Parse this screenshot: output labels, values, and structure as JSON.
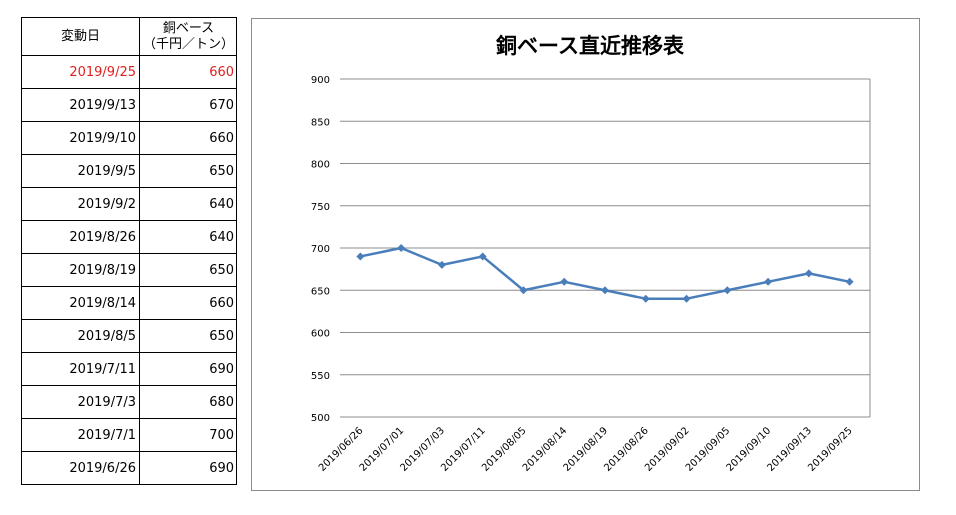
{
  "table": {
    "header": {
      "date": "変動日",
      "price_line1": "銅ベース",
      "price_line2": "（千円／トン）"
    },
    "rows": [
      {
        "date": "2019/9/25",
        "price": "660"
      },
      {
        "date": "2019/9/13",
        "price": "670"
      },
      {
        "date": "2019/9/10",
        "price": "660"
      },
      {
        "date": "2019/9/5",
        "price": "650"
      },
      {
        "date": "2019/9/2",
        "price": "640"
      },
      {
        "date": "2019/8/26",
        "price": "640"
      },
      {
        "date": "2019/8/19",
        "price": "650"
      },
      {
        "date": "2019/8/14",
        "price": "660"
      },
      {
        "date": "2019/8/5",
        "price": "650"
      },
      {
        "date": "2019/7/11",
        "price": "690"
      },
      {
        "date": "2019/7/3",
        "price": "680"
      },
      {
        "date": "2019/7/1",
        "price": "700"
      },
      {
        "date": "2019/6/26",
        "price": "690"
      }
    ],
    "highlight_color": "#e02020"
  },
  "chart_data": {
    "type": "line",
    "title": "銅ベース直近推移表",
    "categories": [
      "2019/06/26",
      "2019/07/01",
      "2019/07/03",
      "2019/07/11",
      "2019/08/05",
      "2019/08/14",
      "2019/08/19",
      "2019/08/26",
      "2019/09/02",
      "2019/09/05",
      "2019/09/10",
      "2019/09/13",
      "2019/09/25"
    ],
    "series": [
      {
        "values": [
          690,
          700,
          680,
          690,
          650,
          660,
          650,
          640,
          640,
          650,
          660,
          670,
          660
        ],
        "color": "#4a7ebb",
        "marker": "diamond"
      }
    ],
    "ylim": [
      500,
      900
    ],
    "yticks": [
      500,
      550,
      600,
      650,
      700,
      750,
      800,
      850,
      900
    ],
    "grid": true,
    "legend": "none"
  }
}
